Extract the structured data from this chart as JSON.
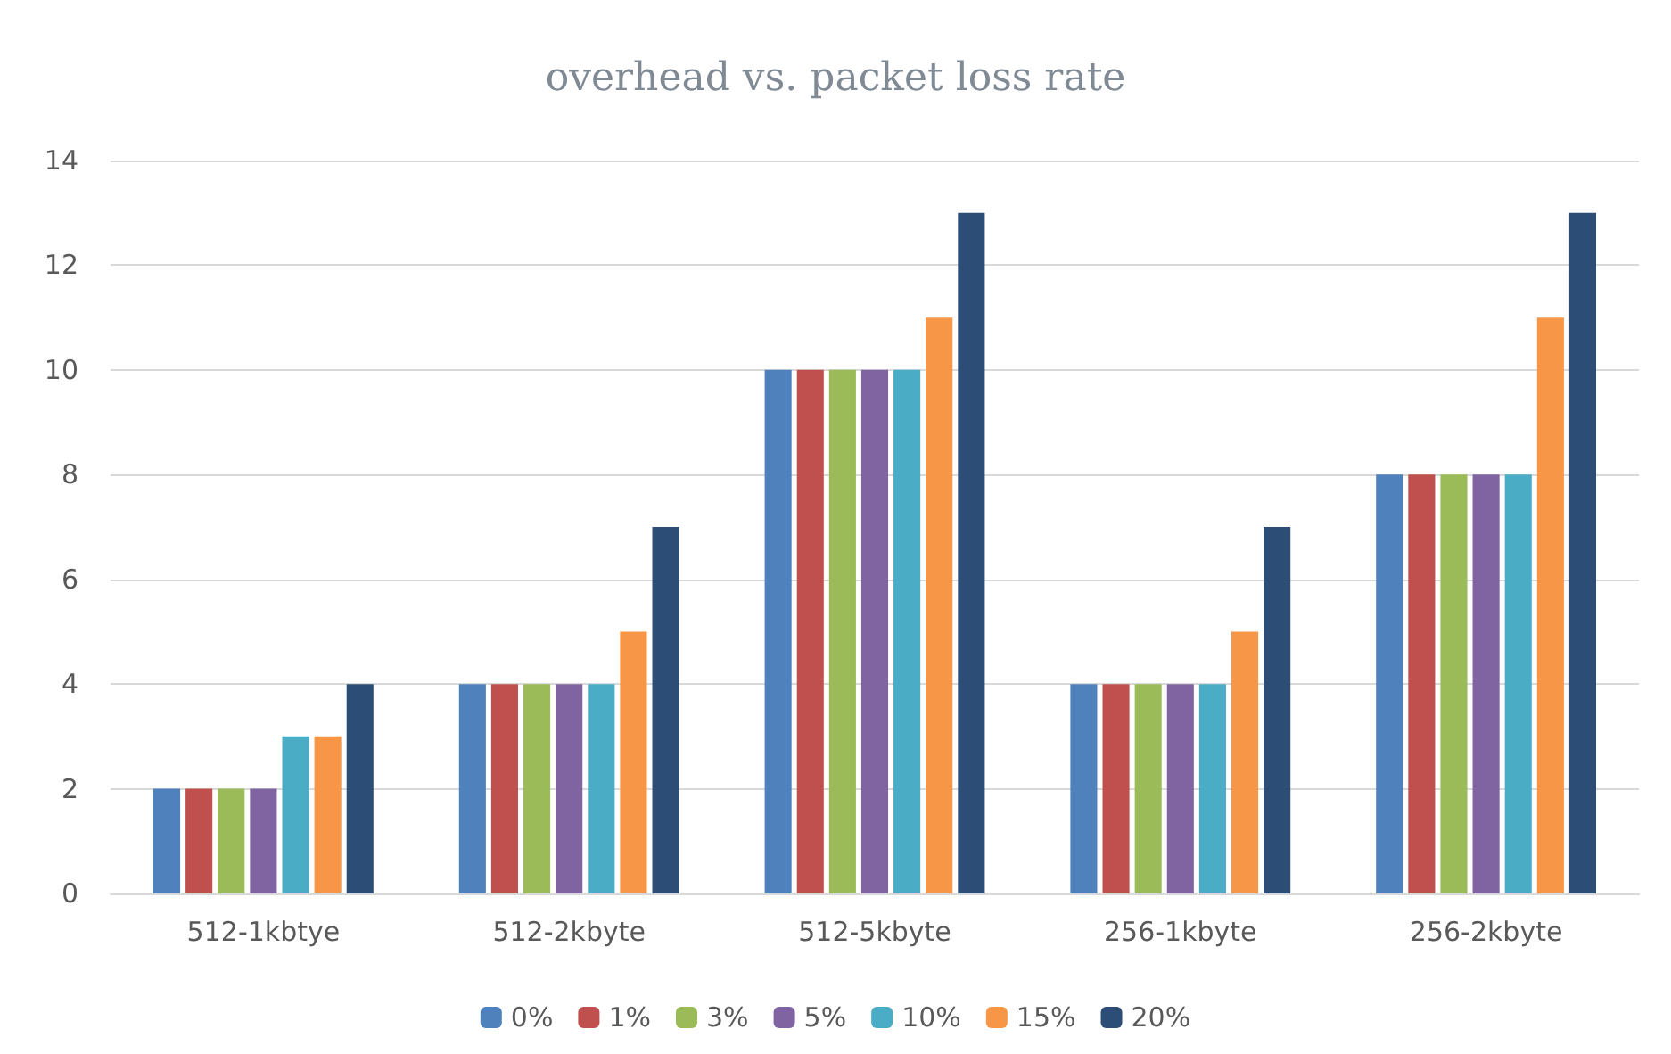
{
  "chart_data": {
    "type": "bar",
    "title": "overhead vs. packet loss rate",
    "categories": [
      "512-1kbtye",
      "512-2kbyte",
      "512-5kbyte",
      "256-1kbyte",
      "256-2kbyte"
    ],
    "series": [
      {
        "name": "0%",
        "color": "#4f81bd",
        "values": [
          2,
          4,
          10,
          4,
          8
        ]
      },
      {
        "name": "1%",
        "color": "#c0504d",
        "values": [
          2,
          4,
          10,
          4,
          8
        ]
      },
      {
        "name": "3%",
        "color": "#9bbb59",
        "values": [
          2,
          4,
          10,
          4,
          8
        ]
      },
      {
        "name": "5%",
        "color": "#8064a2",
        "values": [
          2,
          4,
          10,
          4,
          8
        ]
      },
      {
        "name": "10%",
        "color": "#4bacc6",
        "values": [
          3,
          4,
          10,
          4,
          8
        ]
      },
      {
        "name": "15%",
        "color": "#f79646",
        "values": [
          3,
          5,
          11,
          5,
          11
        ]
      },
      {
        "name": "20%",
        "color": "#2c4d75",
        "values": [
          4,
          7,
          13,
          7,
          13
        ]
      }
    ],
    "ylim": [
      0,
      14
    ],
    "yticks": [
      0,
      2,
      4,
      6,
      8,
      10,
      12,
      14
    ],
    "grid": "y",
    "legend": "bottom"
  }
}
